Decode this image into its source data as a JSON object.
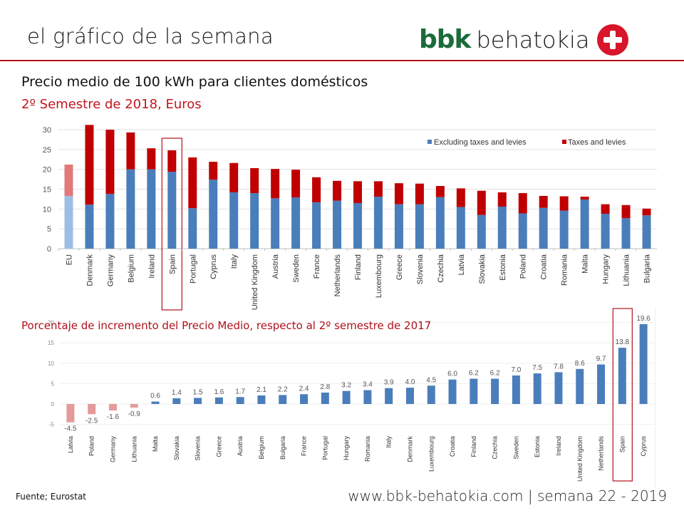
{
  "header": {
    "title": "el gráfico de la semana",
    "logo_bbk": "bbk",
    "logo_behatokia": "behatokia",
    "logo_icon": "plus-cross-icon"
  },
  "colors": {
    "accent_red": "#c0161d",
    "excl_blue": "#4a7ebb",
    "taxes_red": "#c00000",
    "eu_excl": "#9dbde4",
    "eu_taxes": "#e07a7a",
    "neg_bar": "#e59a9a",
    "logo_green": "#1b6b3a"
  },
  "titles": {
    "main": "Precio medio de 100 kWh para clientes domésticos",
    "subtitle": "2º Semestre de 2018, Euros",
    "second_chart": "Porcentaje de incremento del Precio Medio, respecto al 2º semestre de 2017"
  },
  "footer": {
    "source": "Fuente; Eurostat",
    "website": "www.bbk-behatokia.com | semana 22 - 2019"
  },
  "chart_data": [
    {
      "type": "bar",
      "stacked": true,
      "title": "Precio medio de 100 kWh para clientes domésticos",
      "subtitle": "2º Semestre de 2018, Euros",
      "xlabel": "",
      "ylabel": "",
      "ylim": [
        0,
        30
      ],
      "yticks": [
        0,
        5,
        10,
        15,
        20,
        25,
        30
      ],
      "grid": true,
      "legend": "top-right",
      "highlight": "Spain",
      "categories": [
        "EU",
        "Denmark",
        "Germany",
        "Belgium",
        "Ireland",
        "Spain",
        "Portugal",
        "Cyprus",
        "Italy",
        "United Kingdom",
        "Austria",
        "Sweden",
        "France",
        "Netherlands",
        "Finland",
        "Luxembourg",
        "Greece",
        "Slovenia",
        "Czechia",
        "Latvia",
        "Slovakia",
        "Estonia",
        "Poland",
        "Croatia",
        "Romania",
        "Malta",
        "Hungary",
        "Lithuania",
        "Bulgaria"
      ],
      "series": [
        {
          "name": "Excluding taxes and levies",
          "values": [
            13.3,
            11.1,
            13.8,
            20.0,
            20.0,
            19.4,
            10.2,
            17.4,
            14.2,
            14.0,
            12.7,
            12.9,
            11.7,
            12.1,
            11.5,
            13.1,
            11.2,
            11.2,
            13.0,
            10.5,
            8.5,
            10.6,
            8.9,
            10.3,
            9.6,
            12.4,
            8.8,
            7.7,
            8.4
          ]
        },
        {
          "name": "Taxes and levies",
          "values": [
            7.9,
            20.1,
            16.2,
            9.3,
            5.3,
            5.4,
            12.8,
            4.5,
            7.4,
            6.3,
            7.4,
            7.0,
            6.3,
            5.0,
            5.5,
            3.9,
            5.3,
            5.2,
            2.8,
            4.7,
            6.1,
            3.6,
            5.1,
            3.0,
            3.6,
            0.7,
            2.4,
            3.3,
            1.7
          ]
        }
      ]
    },
    {
      "type": "bar",
      "title": "Porcentaje de incremento del Precio Medio, respecto al 2º semestre de 2017",
      "xlabel": "",
      "ylabel": "",
      "ylim": [
        -5,
        20
      ],
      "yticks": [
        -5,
        0,
        5,
        10,
        15,
        20
      ],
      "grid": true,
      "highlight": "Spain",
      "categories": [
        "Latvia",
        "Poland",
        "Germany",
        "Lithuania",
        "Malta",
        "Slovakia",
        "Slovenia",
        "Greece",
        "Austria",
        "Belgium",
        "Bulgaria",
        "France",
        "Portugal",
        "Hungary",
        "Romania",
        "Italy",
        "Denmark",
        "Luxembourg",
        "Croatia",
        "Finland",
        "Czechia",
        "Sweden",
        "Estonia",
        "Ireland",
        "United Kingdom",
        "Netherlands",
        "Spain",
        "Cyprus"
      ],
      "values": [
        -4.5,
        -2.5,
        -1.6,
        -0.9,
        0.6,
        1.4,
        1.5,
        1.6,
        1.7,
        2.1,
        2.2,
        2.4,
        2.8,
        3.2,
        3.4,
        3.9,
        4.0,
        4.5,
        6.0,
        6.2,
        6.2,
        7.0,
        7.5,
        7.8,
        8.6,
        9.7,
        13.8,
        19.6
      ],
      "labels": [
        "-4.5",
        "-2.5",
        "-1.6",
        "-0.9",
        "0.6",
        "1.4",
        "1.5",
        "1.6",
        "1.7",
        "2.1",
        "2.2",
        "2.4",
        "2.8",
        "3.2",
        "3.4",
        "3.9",
        "4.0",
        "4.5",
        "6.0",
        "6.2",
        "6.2",
        "7.0",
        "7.5",
        "7.8",
        "8.6",
        "9.7",
        "13.8",
        "19.6"
      ]
    }
  ]
}
